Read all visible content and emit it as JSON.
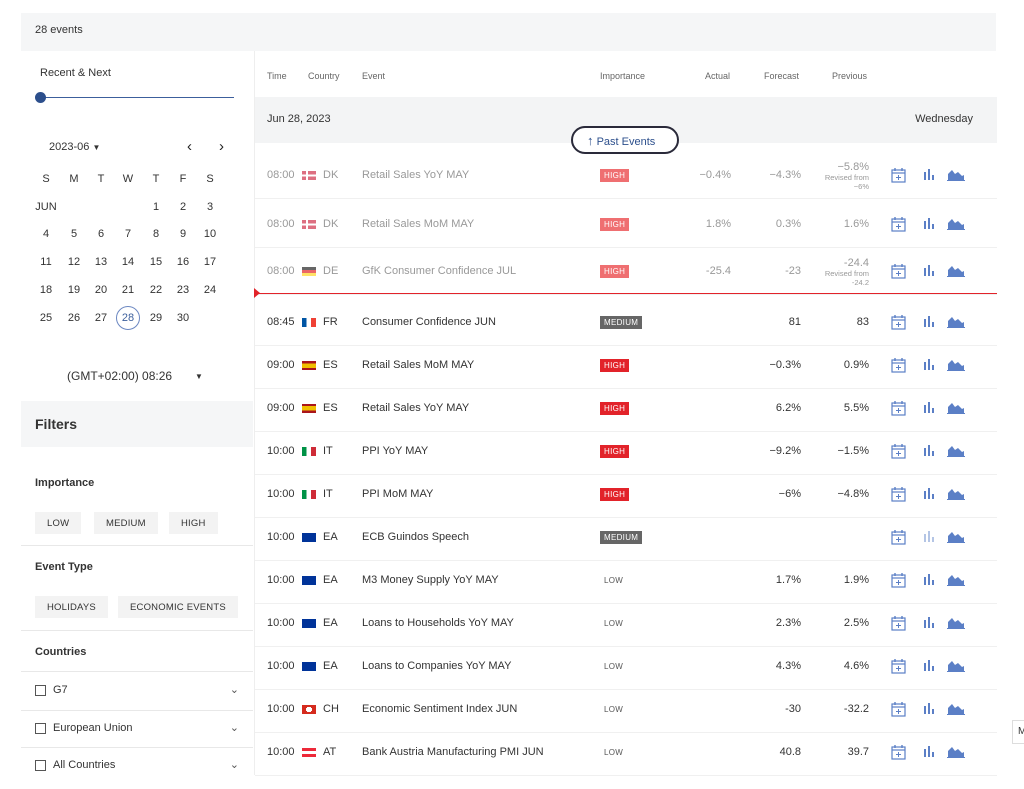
{
  "header": {
    "events_count": "28 events"
  },
  "sidebar": {
    "range_label": "Recent & Next",
    "calendar": {
      "month_label": "2023-06",
      "prev": "‹",
      "next": "›",
      "weekdays": [
        "S",
        "M",
        "T",
        "W",
        "T",
        "F",
        "S"
      ],
      "month_short": "JUN",
      "weeks": [
        [
          "",
          "",
          "",
          "",
          "1",
          "2",
          "3"
        ],
        [
          "4",
          "5",
          "6",
          "7",
          "8",
          "9",
          "10"
        ],
        [
          "11",
          "12",
          "13",
          "14",
          "15",
          "16",
          "17"
        ],
        [
          "18",
          "19",
          "20",
          "21",
          "22",
          "23",
          "24"
        ],
        [
          "25",
          "26",
          "27",
          "28",
          "29",
          "30",
          ""
        ]
      ],
      "selected_day": "28"
    },
    "timezone": "(GMT+02:00) 08:26",
    "filters_title": "Filters",
    "importance_label": "Importance",
    "importance_options": [
      "LOW",
      "MEDIUM",
      "HIGH"
    ],
    "event_type_label": "Event Type",
    "event_type_options": [
      "HOLIDAYS",
      "ECONOMIC EVENTS"
    ],
    "countries_label": "Countries",
    "country_groups": [
      "G7",
      "European Union",
      "All Countries"
    ]
  },
  "table": {
    "columns": [
      "Time",
      "Country",
      "Event",
      "Importance",
      "Actual",
      "Forecast",
      "Previous"
    ],
    "date": "Jun 28, 2023",
    "weekday": "Wednesday",
    "past_events_button": "Past Events",
    "revised_prefix": "Revised from",
    "rows": [
      {
        "time": "08:00",
        "country": "DK",
        "event": "Retail Sales YoY MAY",
        "importance": "HIGH",
        "actual": "−0.4%",
        "forecast": "−4.3%",
        "previous": "−5.8%",
        "revised": "−6%",
        "past": true
      },
      {
        "time": "08:00",
        "country": "DK",
        "event": "Retail Sales MoM MAY",
        "importance": "HIGH",
        "actual": "1.8%",
        "forecast": "0.3%",
        "previous": "1.6%",
        "revised": "",
        "past": true
      },
      {
        "time": "08:00",
        "country": "DE",
        "event": "GfK Consumer Confidence JUL",
        "importance": "HIGH",
        "actual": "-25.4",
        "forecast": "-23",
        "previous": "-24.4",
        "revised": "-24.2",
        "past": true
      },
      {
        "time": "08:45",
        "country": "FR",
        "event": "Consumer Confidence JUN",
        "importance": "MEDIUM",
        "actual": "",
        "forecast": "81",
        "previous": "83",
        "revised": "",
        "past": false
      },
      {
        "time": "09:00",
        "country": "ES",
        "event": "Retail Sales MoM MAY",
        "importance": "HIGH",
        "actual": "",
        "forecast": "−0.3%",
        "previous": "0.9%",
        "revised": "",
        "past": false
      },
      {
        "time": "09:00",
        "country": "ES",
        "event": "Retail Sales YoY MAY",
        "importance": "HIGH",
        "actual": "",
        "forecast": "6.2%",
        "previous": "5.5%",
        "revised": "",
        "past": false
      },
      {
        "time": "10:00",
        "country": "IT",
        "event": "PPI YoY MAY",
        "importance": "HIGH",
        "actual": "",
        "forecast": "−9.2%",
        "previous": "−1.5%",
        "revised": "",
        "past": false
      },
      {
        "time": "10:00",
        "country": "IT",
        "event": "PPI MoM MAY",
        "importance": "HIGH",
        "actual": "",
        "forecast": "−6%",
        "previous": "−4.8%",
        "revised": "",
        "past": false
      },
      {
        "time": "10:00",
        "country": "EA",
        "event": "ECB Guindos Speech",
        "importance": "MEDIUM",
        "actual": "",
        "forecast": "",
        "previous": "",
        "revised": "",
        "past": false
      },
      {
        "time": "10:00",
        "country": "EA",
        "event": "M3 Money Supply YoY MAY",
        "importance": "LOW",
        "actual": "",
        "forecast": "1.7%",
        "previous": "1.9%",
        "revised": "",
        "past": false
      },
      {
        "time": "10:00",
        "country": "EA",
        "event": "Loans to Households YoY MAY",
        "importance": "LOW",
        "actual": "",
        "forecast": "2.3%",
        "previous": "2.5%",
        "revised": "",
        "past": false
      },
      {
        "time": "10:00",
        "country": "EA",
        "event": "Loans to Companies YoY MAY",
        "importance": "LOW",
        "actual": "",
        "forecast": "4.3%",
        "previous": "4.6%",
        "revised": "",
        "past": false
      },
      {
        "time": "10:00",
        "country": "CH",
        "event": "Economic Sentiment Index JUN",
        "importance": "LOW",
        "actual": "",
        "forecast": "-30",
        "previous": "-32.2",
        "revised": "",
        "past": false
      },
      {
        "time": "10:00",
        "country": "AT",
        "event": "Bank Austria Manufacturing PMI JUN",
        "importance": "LOW",
        "actual": "",
        "forecast": "40.8",
        "previous": "39.7",
        "revised": "",
        "past": false
      }
    ]
  },
  "icons": [
    "calendar-add-icon",
    "bar-chart-icon",
    "area-chart-icon"
  ],
  "colors": {
    "accent": "#2c4f8c",
    "high": "#e2232a",
    "medium": "#666666",
    "panel": "#f5f6f7"
  },
  "side_tab": "M"
}
